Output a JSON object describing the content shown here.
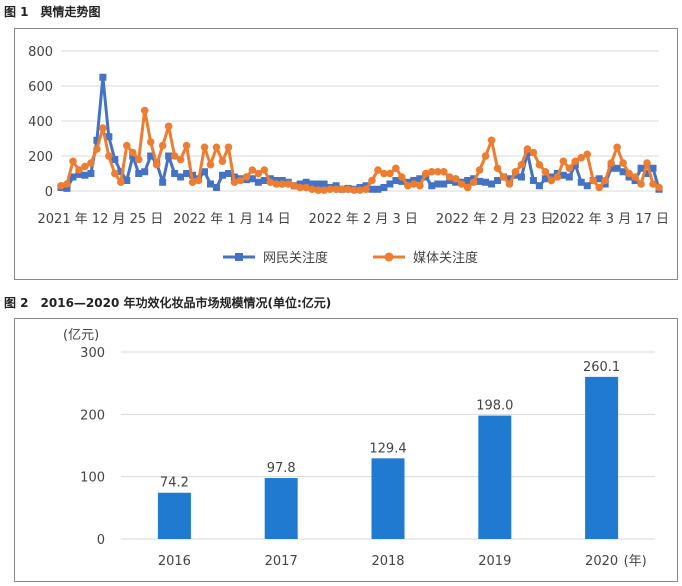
{
  "figure1": {
    "caption": "图 1　舆情走势图",
    "chart_data": {
      "type": "line",
      "title": "",
      "ylim": [
        0,
        800
      ],
      "yticks": [
        0,
        200,
        400,
        600,
        800
      ],
      "x_tick_labels": [
        "2021 年 12 月 25 日",
        "2022 年 1 月 14 日",
        "2022 年 2 月 3 日",
        "2022 年 2 月 23 日",
        "2022 年 3 月 17 日"
      ],
      "x_start_date": "2021-12-19",
      "x_end_date": "2022-03-20",
      "legend_position": "bottom",
      "grid": true,
      "series": [
        {
          "name": "网民关注度",
          "color": "#4472c4",
          "marker": "square",
          "values": [
            20,
            15,
            80,
            95,
            90,
            100,
            290,
            650,
            310,
            180,
            110,
            60,
            200,
            100,
            110,
            200,
            160,
            50,
            200,
            100,
            80,
            100,
            90,
            70,
            110,
            40,
            20,
            90,
            100,
            80,
            70,
            65,
            70,
            50,
            60,
            70,
            60,
            60,
            50,
            30,
            40,
            50,
            40,
            40,
            40,
            20,
            30,
            10,
            15,
            10,
            20,
            30,
            10,
            10,
            20,
            40,
            60,
            55,
            50,
            60,
            70,
            80,
            30,
            40,
            40,
            60,
            50,
            50,
            60,
            70,
            55,
            50,
            40,
            60,
            80,
            70,
            90,
            80,
            220,
            60,
            30,
            70,
            80,
            100,
            90,
            80,
            150,
            50,
            30,
            60,
            70,
            40,
            130,
            130,
            110,
            80,
            60,
            130,
            100,
            130,
            10
          ]
        },
        {
          "name": "媒体关注度",
          "color": "#ed7d31",
          "marker": "circle",
          "values": [
            30,
            40,
            170,
            120,
            140,
            160,
            240,
            360,
            200,
            100,
            50,
            260,
            220,
            180,
            460,
            280,
            150,
            260,
            370,
            200,
            180,
            260,
            50,
            60,
            250,
            150,
            250,
            170,
            250,
            50,
            60,
            80,
            120,
            100,
            120,
            50,
            40,
            40,
            40,
            30,
            20,
            20,
            10,
            5,
            5,
            10,
            10,
            10,
            10,
            5,
            5,
            10,
            60,
            120,
            100,
            100,
            130,
            80,
            30,
            40,
            30,
            100,
            110,
            110,
            110,
            80,
            70,
            40,
            20,
            50,
            120,
            200,
            290,
            130,
            80,
            40,
            110,
            150,
            240,
            220,
            150,
            110,
            60,
            80,
            170,
            130,
            170,
            190,
            210,
            60,
            20,
            60,
            160,
            250,
            160,
            100,
            80,
            40,
            160,
            40,
            20
          ]
        }
      ]
    }
  },
  "figure2": {
    "caption": "图 2　2016—2020 年功效化妆品市场规模情况(单位:亿元)",
    "chart_data": {
      "type": "bar",
      "title": "",
      "ylabel": "(亿元)",
      "xlabel_suffix": "(年)",
      "ylim": [
        0,
        300
      ],
      "yticks": [
        0,
        100,
        200,
        300
      ],
      "categories": [
        "2016",
        "2017",
        "2018",
        "2019",
        "2020"
      ],
      "values": [
        74.2,
        97.8,
        129.4,
        198.0,
        260.1
      ],
      "value_labels": [
        "74.2",
        "97.8",
        "129.4",
        "198.0",
        "260.1"
      ],
      "bar_color": "#1f7ad0",
      "grid": true,
      "legend_position": "none"
    }
  }
}
